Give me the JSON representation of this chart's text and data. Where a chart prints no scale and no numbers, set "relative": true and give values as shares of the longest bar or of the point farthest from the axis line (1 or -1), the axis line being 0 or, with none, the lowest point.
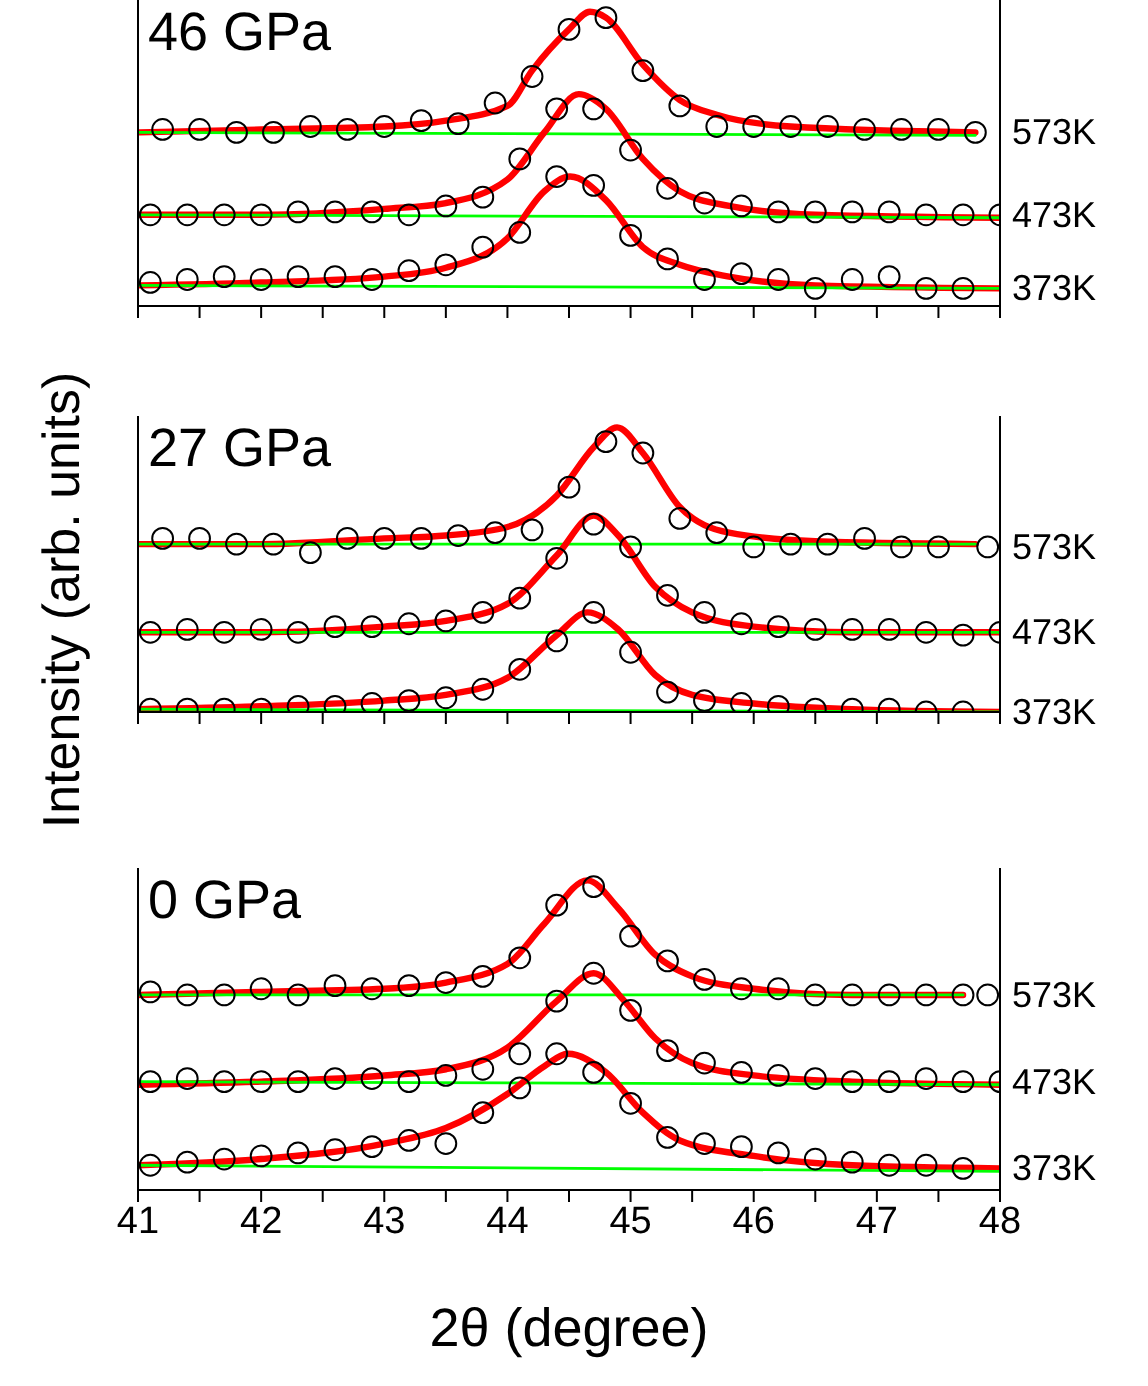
{
  "chart_data": [
    {
      "type": "scatter",
      "title": "46 GPa",
      "relative": true,
      "tick_labels": false,
      "xlim": [
        41,
        48
      ],
      "xticks": [
        41,
        {
          "value": 41.5,
          "label": null
        },
        42,
        {
          "value": 42.5,
          "label": null
        },
        43,
        {
          "value": 43.5,
          "label": null
        },
        44,
        {
          "value": 44.5,
          "label": null
        },
        45,
        {
          "value": 45.5,
          "label": null
        },
        46,
        {
          "value": 46.5,
          "label": null
        },
        47,
        {
          "value": 47.5,
          "label": null
        },
        48
      ],
      "series": [
        {
          "name": "573K",
          "color": "#000000",
          "marker": "circle",
          "x": [
            41.2,
            41.5,
            41.8,
            42.1,
            42.4,
            42.7,
            43.0,
            43.3,
            43.6,
            43.9,
            44.2,
            44.5,
            44.8,
            45.1,
            45.4,
            45.7,
            46.0,
            46.3,
            46.6,
            46.9,
            47.2,
            47.5,
            47.8
          ],
          "values": [
            0.6,
            0.6,
            0.59,
            0.59,
            0.61,
            0.6,
            0.61,
            0.63,
            0.62,
            0.69,
            0.78,
            0.94,
            0.98,
            0.8,
            0.68,
            0.61,
            0.61,
            0.61,
            0.61,
            0.6,
            0.6,
            0.6,
            0.59
          ]
        },
        {
          "type": "line",
          "color": "#ff0000",
          "x": [
            41.0,
            42.0,
            43.0,
            43.5,
            44.0,
            44.2,
            44.5,
            44.67,
            44.8,
            45.1,
            45.4,
            45.7,
            46.3,
            47.8
          ],
          "values": [
            0.59,
            0.6,
            0.61,
            0.63,
            0.68,
            0.8,
            0.94,
            1.0,
            0.98,
            0.82,
            0.7,
            0.65,
            0.61,
            0.59
          ]
        },
        {
          "type": "line",
          "color": "#00ff00",
          "x": [
            41.0,
            47.8
          ],
          "values": [
            0.59,
            0.58
          ]
        },
        {
          "name": "473K",
          "color": "#000000",
          "marker": "circle",
          "x": [
            41.1,
            41.4,
            41.7,
            42.0,
            42.3,
            42.6,
            42.9,
            43.2,
            43.5,
            43.8,
            44.1,
            44.4,
            44.7,
            45.0,
            45.3,
            45.6,
            45.9,
            46.2,
            46.5,
            46.8,
            47.1,
            47.4,
            47.7,
            48.0
          ],
          "values": [
            0.31,
            0.31,
            0.31,
            0.31,
            0.32,
            0.32,
            0.32,
            0.31,
            0.34,
            0.37,
            0.5,
            0.67,
            0.67,
            0.53,
            0.4,
            0.35,
            0.34,
            0.32,
            0.32,
            0.32,
            0.32,
            0.31,
            0.31,
            0.31
          ]
        },
        {
          "type": "line",
          "color": "#ff0000",
          "x": [
            41.0,
            42.0,
            43.0,
            43.5,
            44.0,
            44.3,
            44.58,
            44.8,
            45.1,
            45.4,
            45.8,
            46.5,
            48.0
          ],
          "values": [
            0.31,
            0.31,
            0.33,
            0.35,
            0.43,
            0.59,
            0.72,
            0.67,
            0.5,
            0.39,
            0.34,
            0.31,
            0.3
          ]
        },
        {
          "type": "line",
          "color": "#00ff00",
          "x": [
            41.0,
            48.0
          ],
          "values": [
            0.31,
            0.3
          ]
        },
        {
          "name": "373K",
          "color": "#000000",
          "marker": "circle",
          "x": [
            41.1,
            41.4,
            41.7,
            42.0,
            42.3,
            42.6,
            42.9,
            43.2,
            43.5,
            43.8,
            44.1,
            44.4,
            44.7,
            45.0,
            45.3,
            45.6,
            45.9,
            46.2,
            46.5,
            46.8,
            47.1,
            47.4,
            47.7
          ],
          "values": [
            0.08,
            0.09,
            0.1,
            0.09,
            0.1,
            0.1,
            0.09,
            0.12,
            0.14,
            0.2,
            0.25,
            0.44,
            0.41,
            0.24,
            0.16,
            0.09,
            0.11,
            0.09,
            0.06,
            0.09,
            0.1,
            0.06,
            0.06
          ]
        },
        {
          "type": "line",
          "color": "#ff0000",
          "x": [
            41.0,
            42.0,
            43.0,
            43.5,
            44.0,
            44.3,
            44.51,
            44.8,
            45.1,
            45.4,
            45.8,
            46.5,
            48.0
          ],
          "values": [
            0.07,
            0.08,
            0.1,
            0.13,
            0.23,
            0.39,
            0.44,
            0.36,
            0.2,
            0.14,
            0.1,
            0.07,
            0.06
          ]
        },
        {
          "type": "line",
          "color": "#00ff00",
          "x": [
            41.0,
            48.0
          ],
          "values": [
            0.07,
            0.06
          ]
        }
      ]
    },
    {
      "type": "scatter",
      "title": "27 GPa",
      "ylabel": "Intensity (arb. units)",
      "relative": true,
      "tick_labels": false,
      "xlim": [
        41,
        48
      ],
      "xticks": [
        41,
        {
          "value": 41.5,
          "label": null
        },
        42,
        {
          "value": 42.5,
          "label": null
        },
        43,
        {
          "value": 43.5,
          "label": null
        },
        44,
        {
          "value": 44.5,
          "label": null
        },
        45,
        {
          "value": 45.5,
          "label": null
        },
        46,
        {
          "value": 46.5,
          "label": null
        },
        47,
        {
          "value": 47.5,
          "label": null
        },
        48
      ],
      "series": [
        {
          "name": "573K",
          "color": "#000000",
          "marker": "circle",
          "x": [
            41.2,
            41.5,
            41.8,
            42.1,
            42.4,
            42.7,
            43.0,
            43.3,
            43.6,
            43.9,
            44.2,
            44.5,
            44.8,
            45.1,
            45.4,
            45.7,
            46.0,
            46.3,
            46.6,
            46.9,
            47.2,
            47.5,
            47.9
          ],
          "values": [
            0.61,
            0.61,
            0.59,
            0.59,
            0.56,
            0.61,
            0.61,
            0.61,
            0.62,
            0.63,
            0.64,
            0.79,
            0.95,
            0.91,
            0.68,
            0.63,
            0.58,
            0.59,
            0.59,
            0.61,
            0.58,
            0.58,
            0.58
          ]
        },
        {
          "type": "line",
          "color": "#ff0000",
          "x": [
            41.0,
            42.0,
            43.0,
            43.5,
            44.0,
            44.4,
            44.7,
            44.89,
            45.1,
            45.4,
            45.8,
            46.5,
            47.8
          ],
          "values": [
            0.59,
            0.59,
            0.61,
            0.62,
            0.65,
            0.76,
            0.93,
            1.0,
            0.91,
            0.72,
            0.63,
            0.6,
            0.59
          ]
        },
        {
          "type": "line",
          "color": "#00ff00",
          "x": [
            41.0,
            47.8
          ],
          "values": [
            0.59,
            0.59
          ]
        },
        {
          "name": "473K",
          "color": "#000000",
          "marker": "circle",
          "x": [
            41.1,
            41.4,
            41.7,
            42.0,
            42.3,
            42.6,
            42.9,
            43.2,
            43.5,
            43.8,
            44.1,
            44.4,
            44.7,
            45.0,
            45.3,
            45.6,
            45.9,
            46.2,
            46.5,
            46.8,
            47.1,
            47.4,
            47.7,
            48.0
          ],
          "values": [
            0.28,
            0.29,
            0.28,
            0.29,
            0.28,
            0.3,
            0.3,
            0.31,
            0.32,
            0.35,
            0.4,
            0.54,
            0.66,
            0.58,
            0.41,
            0.35,
            0.31,
            0.3,
            0.29,
            0.29,
            0.29,
            0.28,
            0.27,
            0.28
          ]
        },
        {
          "type": "line",
          "color": "#ff0000",
          "x": [
            41.0,
            42.0,
            43.0,
            43.5,
            44.0,
            44.4,
            44.7,
            44.9,
            45.2,
            45.5,
            46.0,
            46.8,
            48.0
          ],
          "values": [
            0.28,
            0.28,
            0.3,
            0.32,
            0.38,
            0.55,
            0.69,
            0.62,
            0.44,
            0.35,
            0.3,
            0.28,
            0.28
          ]
        },
        {
          "type": "line",
          "color": "#00ff00",
          "x": [
            41.0,
            48.0
          ],
          "values": [
            0.28,
            0.28
          ]
        },
        {
          "name": "373K",
          "color": "#000000",
          "marker": "circle",
          "x": [
            41.1,
            41.4,
            41.7,
            42.0,
            42.3,
            42.6,
            42.9,
            43.2,
            43.5,
            43.8,
            44.1,
            44.4,
            44.7,
            45.0,
            45.3,
            45.6,
            45.9,
            46.2,
            46.5,
            46.8,
            47.1,
            47.4,
            47.7
          ],
          "values": [
            0.01,
            0.01,
            0.01,
            0.01,
            0.02,
            0.02,
            0.03,
            0.04,
            0.05,
            0.08,
            0.15,
            0.25,
            0.35,
            0.21,
            0.07,
            0.04,
            0.03,
            0.02,
            0.01,
            0.01,
            0.01,
            0.0,
            0.0
          ]
        },
        {
          "type": "line",
          "color": "#ff0000",
          "x": [
            41.0,
            42.0,
            43.0,
            43.5,
            44.0,
            44.4,
            44.65,
            44.9,
            45.2,
            45.5,
            46.0,
            46.8,
            48.0
          ],
          "values": [
            0.01,
            0.02,
            0.04,
            0.06,
            0.12,
            0.27,
            0.35,
            0.29,
            0.13,
            0.06,
            0.03,
            0.01,
            0.0
          ]
        },
        {
          "type": "line",
          "color": "#00ff00",
          "x": [
            41.0,
            48.0
          ],
          "values": [
            0.01,
            0.0
          ]
        }
      ]
    },
    {
      "type": "scatter",
      "title": "0 GPa",
      "xlabel": "2θ (degree)",
      "relative": true,
      "xlim": [
        41,
        48
      ],
      "xticks": [
        41,
        {
          "value": 41.5,
          "label": null
        },
        42,
        {
          "value": 42.5,
          "label": null
        },
        43,
        {
          "value": 43.5,
          "label": null
        },
        44,
        {
          "value": 44.5,
          "label": null
        },
        45,
        {
          "value": 45.5,
          "label": null
        },
        46,
        {
          "value": 46.5,
          "label": null
        },
        47,
        {
          "value": 47.5,
          "label": null
        },
        48
      ],
      "series": [
        {
          "name": "573K",
          "color": "#000000",
          "marker": "circle",
          "x": [
            41.1,
            41.4,
            41.7,
            42.0,
            42.3,
            42.6,
            42.9,
            43.2,
            43.5,
            43.8,
            44.1,
            44.4,
            44.7,
            45.0,
            45.3,
            45.6,
            45.9,
            46.2,
            46.5,
            46.8,
            47.1,
            47.4,
            47.7,
            47.9
          ],
          "values": [
            0.64,
            0.63,
            0.63,
            0.65,
            0.63,
            0.66,
            0.65,
            0.66,
            0.67,
            0.69,
            0.75,
            0.92,
            0.98,
            0.82,
            0.74,
            0.68,
            0.65,
            0.65,
            0.63,
            0.63,
            0.63,
            0.63,
            0.63,
            0.63
          ]
        },
        {
          "type": "line",
          "color": "#ff0000",
          "x": [
            41.0,
            42.0,
            43.0,
            43.5,
            44.0,
            44.3,
            44.65,
            44.9,
            45.2,
            45.5,
            46.0,
            46.8,
            47.7
          ],
          "values": [
            0.63,
            0.64,
            0.65,
            0.67,
            0.73,
            0.86,
            1.0,
            0.91,
            0.76,
            0.69,
            0.65,
            0.63,
            0.63
          ]
        },
        {
          "type": "line",
          "color": "#00ff00",
          "x": [
            41.0,
            47.7
          ],
          "values": [
            0.63,
            0.63
          ]
        },
        {
          "name": "473K",
          "color": "#000000",
          "marker": "circle",
          "x": [
            41.1,
            41.4,
            41.7,
            42.0,
            42.3,
            42.6,
            42.9,
            43.2,
            43.5,
            43.8,
            44.1,
            44.4,
            44.7,
            45.0,
            45.3,
            45.6,
            45.9,
            46.2,
            46.5,
            46.8,
            47.1,
            47.4,
            47.7,
            48.0
          ],
          "values": [
            0.35,
            0.36,
            0.35,
            0.35,
            0.35,
            0.36,
            0.36,
            0.35,
            0.37,
            0.39,
            0.44,
            0.61,
            0.7,
            0.58,
            0.45,
            0.41,
            0.38,
            0.37,
            0.36,
            0.35,
            0.35,
            0.36,
            0.35,
            0.35
          ]
        },
        {
          "type": "line",
          "color": "#ff0000",
          "x": [
            41.0,
            42.0,
            43.0,
            43.5,
            44.0,
            44.4,
            44.7,
            44.95,
            45.2,
            45.5,
            46.0,
            46.8,
            48.0
          ],
          "values": [
            0.34,
            0.35,
            0.37,
            0.39,
            0.46,
            0.61,
            0.7,
            0.61,
            0.49,
            0.41,
            0.37,
            0.35,
            0.34
          ]
        },
        {
          "type": "line",
          "color": "#00ff00",
          "x": [
            41.0,
            48.0
          ],
          "values": [
            0.35,
            0.34
          ]
        },
        {
          "name": "373K",
          "color": "#000000",
          "marker": "circle",
          "x": [
            41.1,
            41.4,
            41.7,
            42.0,
            42.3,
            42.6,
            42.9,
            43.2,
            43.5,
            43.8,
            44.1,
            44.4,
            44.7,
            45.0,
            45.3,
            45.6,
            45.9,
            46.2,
            46.5,
            46.8,
            47.1,
            47.4,
            47.7
          ],
          "values": [
            0.08,
            0.09,
            0.1,
            0.11,
            0.12,
            0.13,
            0.14,
            0.16,
            0.15,
            0.25,
            0.33,
            0.44,
            0.38,
            0.28,
            0.17,
            0.15,
            0.14,
            0.12,
            0.1,
            0.09,
            0.08,
            0.08,
            0.07
          ]
        },
        {
          "type": "line",
          "color": "#ff0000",
          "x": [
            41.0,
            42.0,
            43.0,
            43.5,
            44.0,
            44.3,
            44.49,
            44.8,
            45.1,
            45.4,
            46.0,
            46.8,
            48.0
          ],
          "values": [
            0.08,
            0.1,
            0.15,
            0.2,
            0.31,
            0.4,
            0.44,
            0.38,
            0.25,
            0.16,
            0.11,
            0.08,
            0.07
          ]
        },
        {
          "type": "line",
          "color": "#00ff00",
          "x": [
            41.0,
            48.0
          ],
          "values": [
            0.08,
            0.06
          ]
        }
      ]
    }
  ]
}
